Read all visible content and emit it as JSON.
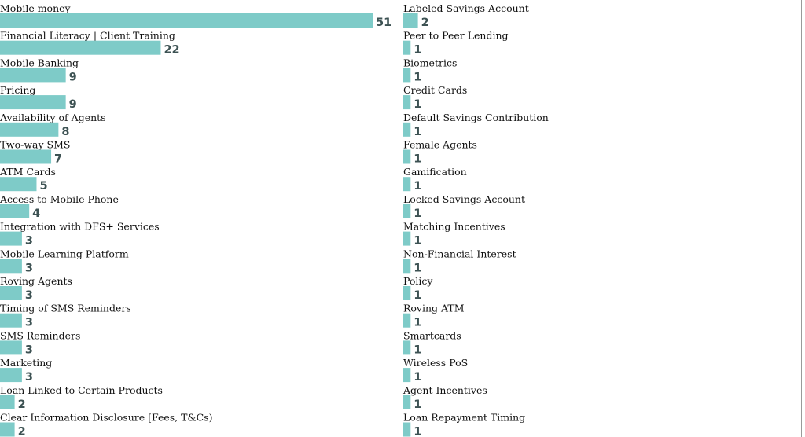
{
  "chart_data": {
    "type": "bar",
    "orientation": "horizontal",
    "layout": "two-columns",
    "bar_color": "#7ecbc8",
    "value_label_color": "#3d5253",
    "categories": [
      "Mobile money",
      "Financial Literacy | Client Training",
      "Mobile Banking",
      "Pricing",
      "Availability of Agents",
      "Two-way SMS",
      "ATM Cards",
      "Access to Mobile Phone",
      "Integration with DFS+ Services",
      "Mobile Learning Platform",
      "Roving Agents",
      "Timing of SMS Reminders",
      "SMS Reminders",
      "Marketing",
      "Loan Linked to Certain Products",
      "Clear Information Disclosure [Fees, T&Cs)",
      "Labeled Savings Account",
      "Peer to Peer Lending",
      "Biometrics",
      "Credit Cards",
      "Default Savings Contribution",
      "Female Agents",
      "Gamification",
      "Locked Savings Account",
      "Matching Incentives",
      "Non-Financial Interest",
      "Policy",
      "Roving ATM",
      "Smartcards",
      "Wireless PoS",
      "Agent Incentives",
      "Loan Repayment Timing"
    ],
    "values": [
      51,
      22,
      9,
      9,
      8,
      7,
      5,
      4,
      3,
      3,
      3,
      3,
      3,
      3,
      2,
      2,
      2,
      1,
      1,
      1,
      1,
      1,
      1,
      1,
      1,
      1,
      1,
      1,
      1,
      1,
      1,
      1
    ],
    "title": "",
    "xlabel": "",
    "ylabel": "",
    "xlim": [
      0,
      51
    ]
  }
}
